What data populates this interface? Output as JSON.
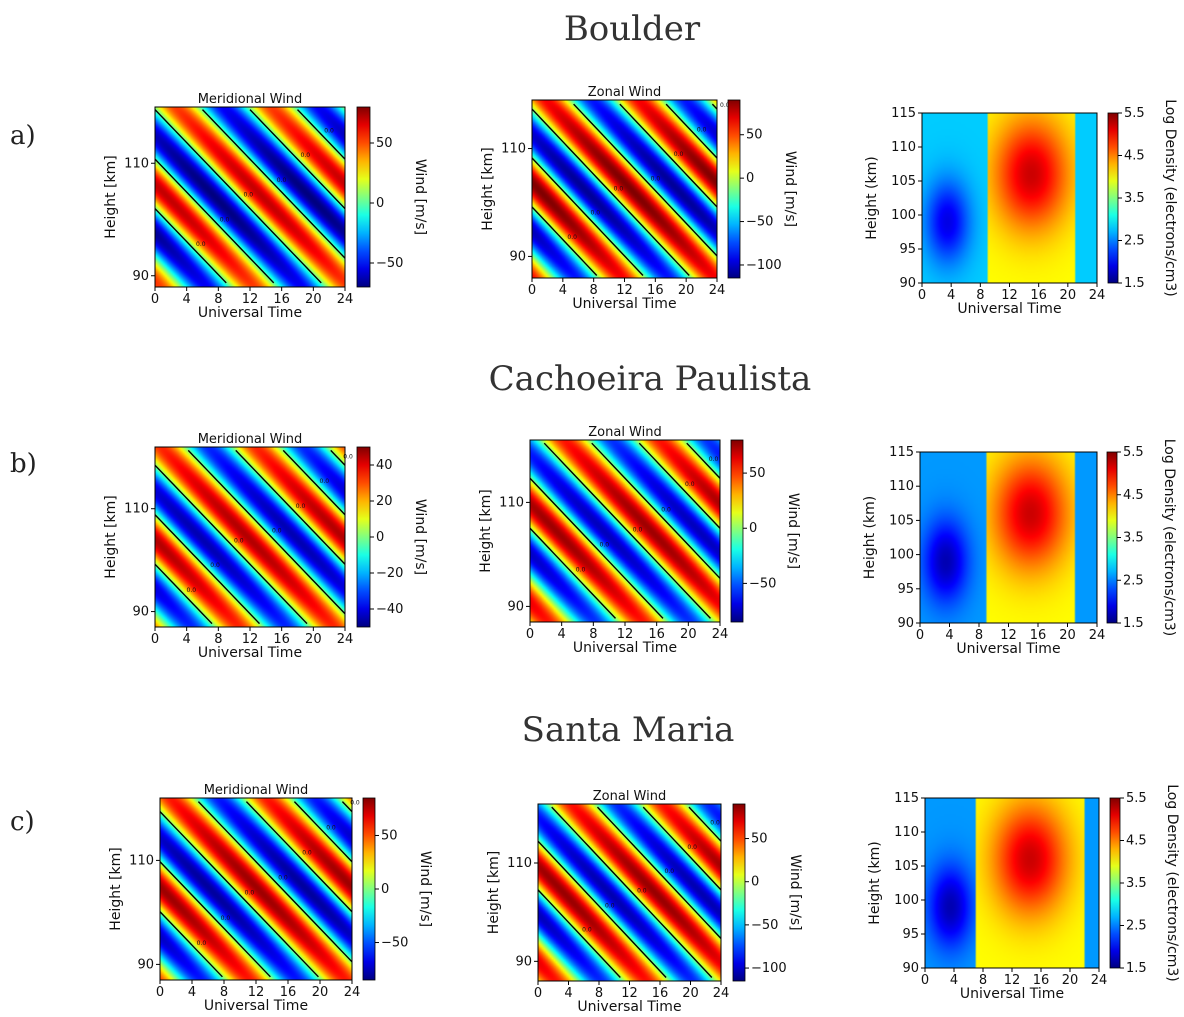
{
  "figure": {
    "rows": [
      {
        "label": "a)",
        "site": "Boulder"
      },
      {
        "label": "b)",
        "site": "Cachoeira Paulista"
      },
      {
        "label": "c)",
        "site": "Santa Maria"
      }
    ]
  },
  "chart_data": [
    {
      "type": "heatmap",
      "site": "Boulder",
      "panel": "a",
      "title": "Meridional Wind",
      "xlabel": "Universal Time",
      "ylabel": "Height [km]",
      "xlim": [
        0,
        24
      ],
      "ylim": [
        88,
        120
      ],
      "xticks": [
        "0",
        "4",
        "8",
        "12",
        "16",
        "20",
        "24"
      ],
      "yticks": [
        "90",
        "110"
      ],
      "colorbar": {
        "label": "Wind [m/s]",
        "range": [
          -70,
          80
        ],
        "ticks": [
          "50",
          "0",
          "−50"
        ]
      },
      "colormap": "jet",
      "contour_label": "0.0",
      "field": {
        "base": 0,
        "amp": 70,
        "period_h": 12,
        "shift_h": -2.5,
        "phase": 0,
        "offset": 0,
        "tilt_km_per_h": -0.9
      }
    },
    {
      "type": "heatmap",
      "site": "Boulder",
      "panel": "a",
      "title": "Zonal Wind",
      "xlabel": "Universal Time",
      "ylabel": "Height [km]",
      "xlim": [
        0,
        24
      ],
      "ylim": [
        86,
        119
      ],
      "xticks": [
        "0",
        "4",
        "8",
        "12",
        "16",
        "20",
        "24"
      ],
      "yticks": [
        "90",
        "110"
      ],
      "colorbar": {
        "label": "Wind [m/s]",
        "range": [
          -115,
          90
        ],
        "ticks": [
          "50",
          "0",
          "−50",
          "−100"
        ]
      },
      "colormap": "jet",
      "contour_label": "0.0",
      "field": {
        "base": 0,
        "amp": 100,
        "period_h": 12,
        "shift_h": -1,
        "phase": 1.2,
        "offset": -10,
        "tilt_km_per_h": -0.9
      }
    },
    {
      "type": "heatmap",
      "site": "Boulder",
      "panel": "a",
      "xlabel": "Universal Time",
      "ylabel": "Height (km)",
      "xlim": [
        0,
        24
      ],
      "ylim": [
        90,
        115
      ],
      "xticks": [
        "0",
        "4",
        "8",
        "12",
        "16",
        "20",
        "24"
      ],
      "yticks": [
        "90",
        "95",
        "100",
        "105",
        "110",
        "115"
      ],
      "colorbar": {
        "label": "Log Density (electrons/cm3)",
        "range": [
          1.5,
          5.5
        ],
        "ticks": [
          "5.5",
          "4.5",
          "3.5",
          "2.5",
          "1.5"
        ]
      },
      "colormap": "jet",
      "field": {
        "day_start": 9,
        "day_end": 21,
        "night_value": 2.0,
        "day_peak": 5.2
      }
    },
    {
      "type": "heatmap",
      "site": "Cachoeira Paulista",
      "panel": "b",
      "title": "Meridional Wind",
      "xlabel": "Universal Time",
      "ylabel": "Height [km]",
      "xlim": [
        0,
        24
      ],
      "ylim": [
        87,
        122
      ],
      "xticks": [
        "0",
        "4",
        "8",
        "12",
        "16",
        "20",
        "24"
      ],
      "yticks": [
        "90",
        "110"
      ],
      "colorbar": {
        "label": "Wind [m/s]",
        "range": [
          -50,
          50
        ],
        "ticks": [
          "40",
          "20",
          "0",
          "−20",
          "−40"
        ]
      },
      "colormap": "jet",
      "contour_label": "0.0",
      "field": {
        "base": 0,
        "amp": 45,
        "period_h": 12,
        "shift_h": 0,
        "phase": 2.3,
        "offset": 0,
        "tilt_km_per_h": -0.9
      }
    },
    {
      "type": "heatmap",
      "site": "Cachoeira Paulista",
      "panel": "b",
      "title": "Zonal Wind",
      "xlabel": "Universal Time",
      "ylabel": "Height [km]",
      "xlim": [
        0,
        24
      ],
      "ylim": [
        87,
        122
      ],
      "xticks": [
        "0",
        "4",
        "8",
        "12",
        "16",
        "20",
        "24"
      ],
      "yticks": [
        "90",
        "110"
      ],
      "colorbar": {
        "label": "Wind [m/s]",
        "range": [
          -85,
          80
        ],
        "ticks": [
          "50",
          "0",
          "−50"
        ]
      },
      "colormap": "jet",
      "contour_label": "0.0",
      "field": {
        "base": 0,
        "amp": 75,
        "period_h": 12,
        "shift_h": 0,
        "phase": 0.4,
        "offset": 0,
        "tilt_km_per_h": -0.9
      }
    },
    {
      "type": "heatmap",
      "site": "Cachoeira Paulista",
      "panel": "b",
      "xlabel": "Universal Time",
      "ylabel": "Height (km)",
      "xlim": [
        0,
        24
      ],
      "ylim": [
        90,
        115
      ],
      "xticks": [
        "0",
        "4",
        "8",
        "12",
        "16",
        "20",
        "24"
      ],
      "yticks": [
        "90",
        "95",
        "100",
        "105",
        "110",
        "115"
      ],
      "colorbar": {
        "label": "Log Density (electrons/cm3)",
        "range": [
          1.5,
          5.5
        ],
        "ticks": [
          "5.5",
          "4.5",
          "3.5",
          "2.5",
          "1.5"
        ]
      },
      "colormap": "jet",
      "field": {
        "day_start": 9,
        "day_end": 21,
        "night_value": 1.8,
        "day_peak": 5.2
      }
    },
    {
      "type": "heatmap",
      "site": "Santa Maria",
      "panel": "c",
      "title": "Meridional Wind",
      "xlabel": "Universal Time",
      "ylabel": "Height [km]",
      "xlim": [
        0,
        24
      ],
      "ylim": [
        87,
        122
      ],
      "xticks": [
        "0",
        "4",
        "8",
        "12",
        "16",
        "20",
        "24"
      ],
      "yticks": [
        "90",
        "110"
      ],
      "colorbar": {
        "label": "Wind [m/s]",
        "range": [
          -85,
          85
        ],
        "ticks": [
          "50",
          "0",
          "−50"
        ]
      },
      "colormap": "jet",
      "contour_label": "0.0",
      "field": {
        "base": 0,
        "amp": 80,
        "period_h": 12,
        "shift_h": 0,
        "phase": 2.0,
        "offset": 0,
        "tilt_km_per_h": -0.9
      }
    },
    {
      "type": "heatmap",
      "site": "Santa Maria",
      "panel": "c",
      "title": "Zonal Wind",
      "xlabel": "Universal Time",
      "ylabel": "Height [km]",
      "xlim": [
        0,
        24
      ],
      "ylim": [
        86,
        122
      ],
      "xticks": [
        "0",
        "4",
        "8",
        "12",
        "16",
        "20",
        "24"
      ],
      "yticks": [
        "90",
        "110"
      ],
      "colorbar": {
        "label": "Wind [m/s]",
        "range": [
          -115,
          90
        ],
        "ticks": [
          "50",
          "0",
          "−50",
          "−100"
        ]
      },
      "colormap": "jet",
      "contour_label": "0.0",
      "field": {
        "base": 0,
        "amp": 95,
        "period_h": 12,
        "shift_h": 0,
        "phase": 0.4,
        "offset": -10,
        "tilt_km_per_h": -0.9
      }
    },
    {
      "type": "heatmap",
      "site": "Santa Maria",
      "panel": "c",
      "xlabel": "Universal Time",
      "ylabel": "Height (km)",
      "xlim": [
        0,
        24
      ],
      "ylim": [
        90,
        115
      ],
      "xticks": [
        "0",
        "4",
        "8",
        "12",
        "16",
        "20",
        "24"
      ],
      "yticks": [
        "90",
        "95",
        "100",
        "105",
        "110",
        "115"
      ],
      "colorbar": {
        "label": "Log Density (electrons/cm3)",
        "range": [
          1.5,
          5.5
        ],
        "ticks": [
          "5.5",
          "4.5",
          "3.5",
          "2.5",
          "1.5"
        ]
      },
      "colormap": "jet",
      "field": {
        "day_start": 7,
        "day_end": 22,
        "night_value": 1.8,
        "day_peak": 5.2
      }
    }
  ]
}
